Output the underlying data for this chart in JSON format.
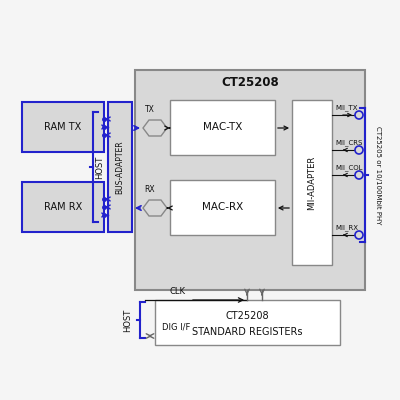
{
  "bg_color": "#f5f5f5",
  "gray_fill": "#d8d8d8",
  "gray_edge": "#888888",
  "white_fill": "#ffffff",
  "blue": "#2222cc",
  "black": "#111111",
  "dark_gray": "#666666",
  "light_blue_fill": "#e0e0f0",
  "labels": {
    "ct25208_title": "CT25208",
    "mac_tx": "MAC-TX",
    "mac_rx": "MAC-RX",
    "mii_adapter": "MII-ADAPTER",
    "ram_tx": "RAM TX",
    "ram_rx": "RAM RX",
    "bus_adapter": "BUS-ADAPTER",
    "host_upper": "HOST",
    "host_lower": "HOST",
    "mii_tx": "MII_TX",
    "mii_crs": "MII_CRS",
    "mii_col": "MII_COL",
    "mii_rx": "MII_RX",
    "tx_label": "TX",
    "rx_label": "RX",
    "phy_label": "CT25205 or 10/100Mbit PHY",
    "clk_label": "CLK",
    "dig_if_label": "DIG I/F",
    "std_regs_line1": "CT25208",
    "std_regs_line2": "STANDARD REGISTERs"
  }
}
